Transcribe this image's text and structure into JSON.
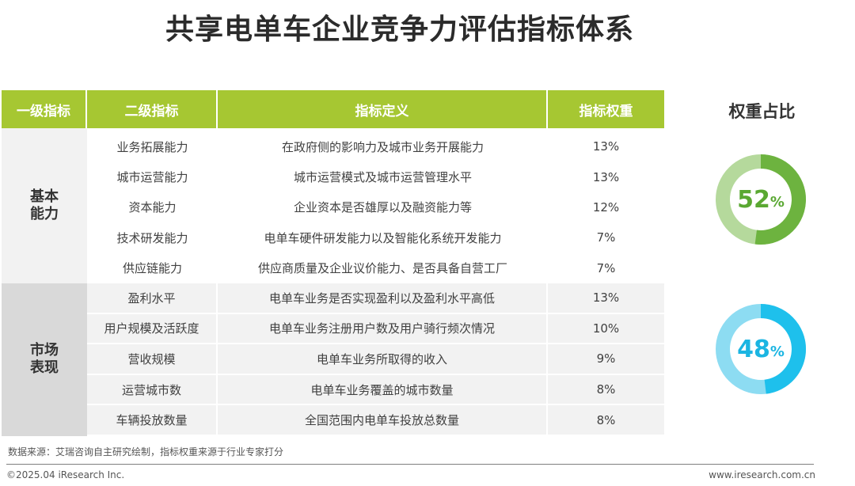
{
  "title": "共享电单车企业竞争力评估指标体系",
  "table": {
    "headers": [
      "一级指标",
      "二级指标",
      "指标定义",
      "指标权重"
    ],
    "groups": [
      {
        "category": "基本\n能力",
        "rows": [
          {
            "name": "业务拓展能力",
            "definition": "在政府侧的影响力及城市业务开展能力",
            "weight": "13%"
          },
          {
            "name": "城市运营能力",
            "definition": "城市运营模式及城市运营管理水平",
            "weight": "13%"
          },
          {
            "name": "资本能力",
            "definition": "企业资本是否雄厚以及融资能力等",
            "weight": "12%"
          },
          {
            "name": "技术研发能力",
            "definition": "电单车硬件研发能力以及智能化系统开发能力",
            "weight": "7%"
          },
          {
            "name": "供应链能力",
            "definition": "供应商质量及企业议价能力、是否具备自营工厂",
            "weight": "7%"
          }
        ]
      },
      {
        "category": "市场\n表现",
        "rows": [
          {
            "name": "盈利水平",
            "definition": "电单车业务是否实现盈利以及盈利水平高低",
            "weight": "13%"
          },
          {
            "name": "用户规模及活跃度",
            "definition": "电单车业务注册用户数及用户骑行频次情况",
            "weight": "10%"
          },
          {
            "name": "营收规模",
            "definition": "电单车业务所取得的收入",
            "weight": "9%"
          },
          {
            "name": "运营城市数",
            "definition": "电单车业务覆盖的城市数量",
            "weight": "8%"
          },
          {
            "name": "车辆投放数量",
            "definition": "全国范围内电单车投放总数量",
            "weight": "8%"
          }
        ]
      }
    ]
  },
  "side": {
    "title": "权重占比",
    "donuts": [
      {
        "value": 52,
        "num": "52",
        "symbol": "%",
        "color": "#6db33f",
        "rest_color": "#b5d99c",
        "text_color": "#5aa832"
      },
      {
        "value": 48,
        "num": "48",
        "symbol": "%",
        "color": "#1ec0ec",
        "rest_color": "#8ddcf2",
        "text_color": "#1bb5e2"
      }
    ]
  },
  "source": "数据来源：艾瑞咨询自主研究绘制，指标权重来源于行业专家打分",
  "footer": {
    "left": "©2025.04 iResearch Inc.",
    "right": "www.iresearch.com.cn"
  }
}
